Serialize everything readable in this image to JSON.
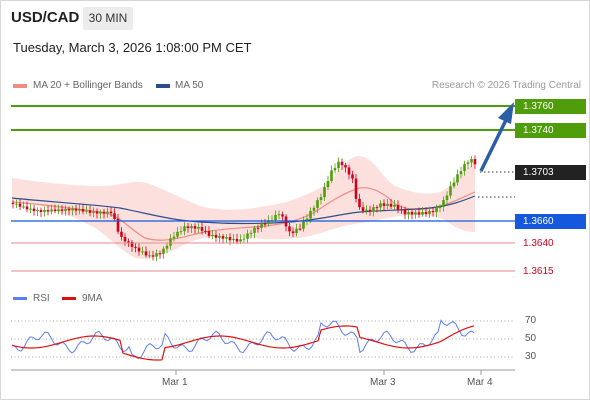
{
  "header": {
    "symbol": "USD/CAD",
    "timeframe": "30 MIN",
    "datetime": "Tuesday, March 3, 2026 1:08:00 PM CET"
  },
  "legend": {
    "ma20": "MA 20 + Bollinger Bands",
    "ma50": "MA 50",
    "credit": "Research © 2026 Trading Central",
    "ma20_color": "#f28b82",
    "ma50_color": "#2c4f8c"
  },
  "levels": {
    "r2": "1.3760",
    "r1": "1.3740",
    "last": "1.3703",
    "pivot": "1.3660",
    "s1": "1.3640",
    "s2": "1.3615"
  },
  "colors": {
    "green": "#4f9d0a",
    "blue": "#1558de",
    "red": "#d0021b",
    "arrow": "#2a5fa8"
  },
  "rsi": {
    "legend_rsi": "RSI",
    "legend_ma": "9MA",
    "level_70": "70",
    "level_50": "50",
    "level_30": "30",
    "rsi_color": "#5b7ff0",
    "ma_color": "#e01010"
  },
  "xaxis": {
    "labels": [
      "Mar 1",
      "Mar 3",
      "Mar 4"
    ]
  }
}
